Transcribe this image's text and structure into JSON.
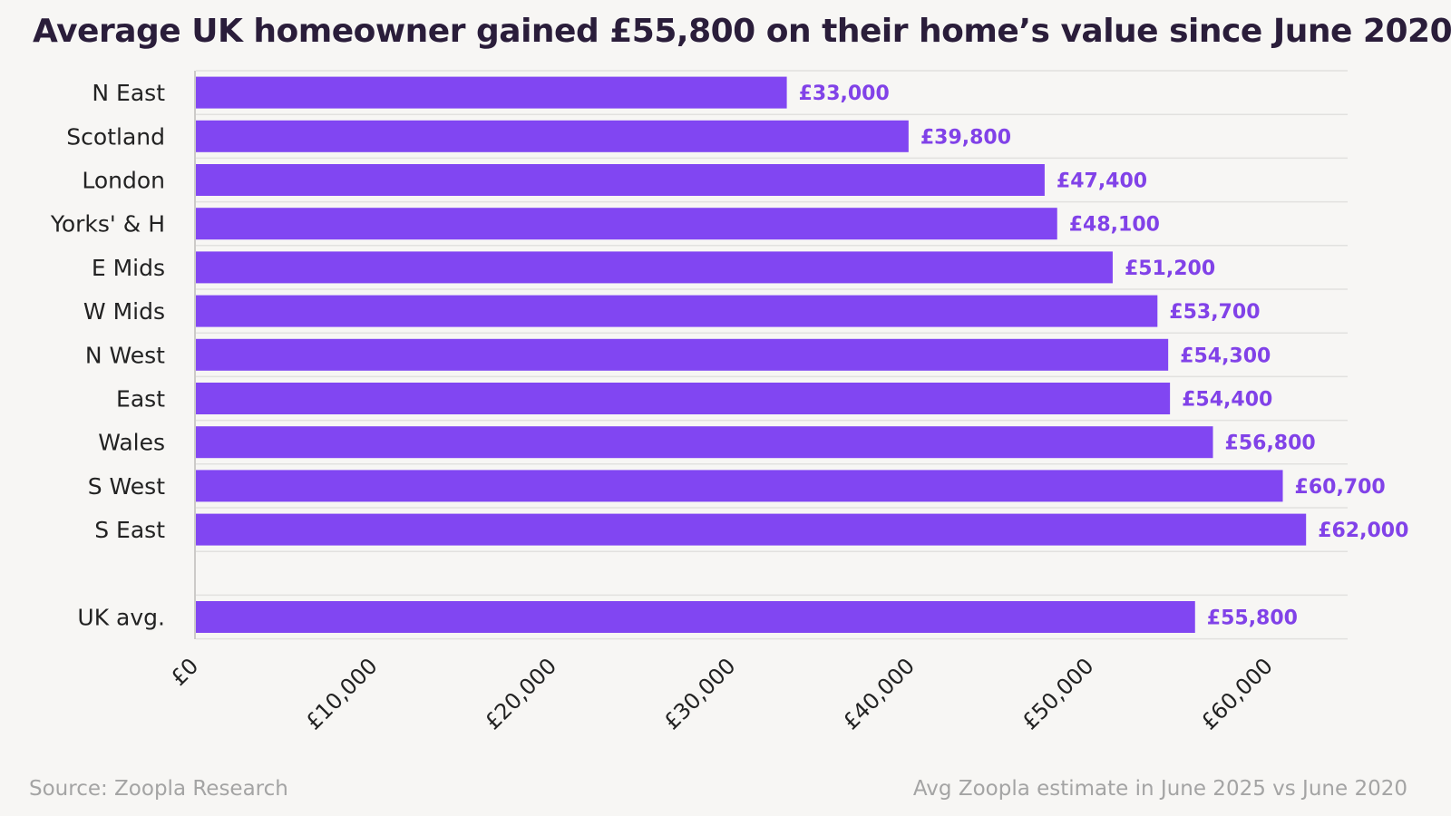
{
  "title": "Average UK homeowner gained £55,800 on their home’s value since June 2020",
  "source": "Source: Zoopla Research",
  "footnote": "Avg Zoopla estimate in June 2025 vs June 2020",
  "colors": {
    "bar": "#8146f2",
    "value_label": "#8142e8",
    "grid": "#e2e1df",
    "background": "#f7f6f4"
  },
  "chart_data": {
    "type": "bar",
    "orientation": "horizontal",
    "title": "Average UK homeowner gained £55,800 on their home’s value since June 2020",
    "xlabel": "",
    "ylabel": "",
    "xlim": [
      0,
      65000
    ],
    "grid": true,
    "x_ticks": [
      0,
      10000,
      20000,
      30000,
      40000,
      50000,
      60000
    ],
    "x_tick_labels": [
      "£0",
      "£10,000",
      "£20,000",
      "£30,000",
      "£40,000",
      "£50,000",
      "£60,000"
    ],
    "categories": [
      "N East",
      "Scotland",
      "London",
      "Yorks' & H",
      "E Mids",
      "W Mids",
      "N West",
      "East",
      "Wales",
      "S West",
      "S East",
      "UK avg."
    ],
    "values": [
      33000,
      39800,
      47400,
      48100,
      51200,
      53700,
      54300,
      54400,
      56800,
      60700,
      62000,
      55800
    ],
    "value_labels": [
      "£33,000",
      "£39,800",
      "£47,400",
      "£48,100",
      "£51,200",
      "£53,700",
      "£54,300",
      "£54,400",
      "£56,800",
      "£60,700",
      "£62,000",
      "£55,800"
    ]
  }
}
